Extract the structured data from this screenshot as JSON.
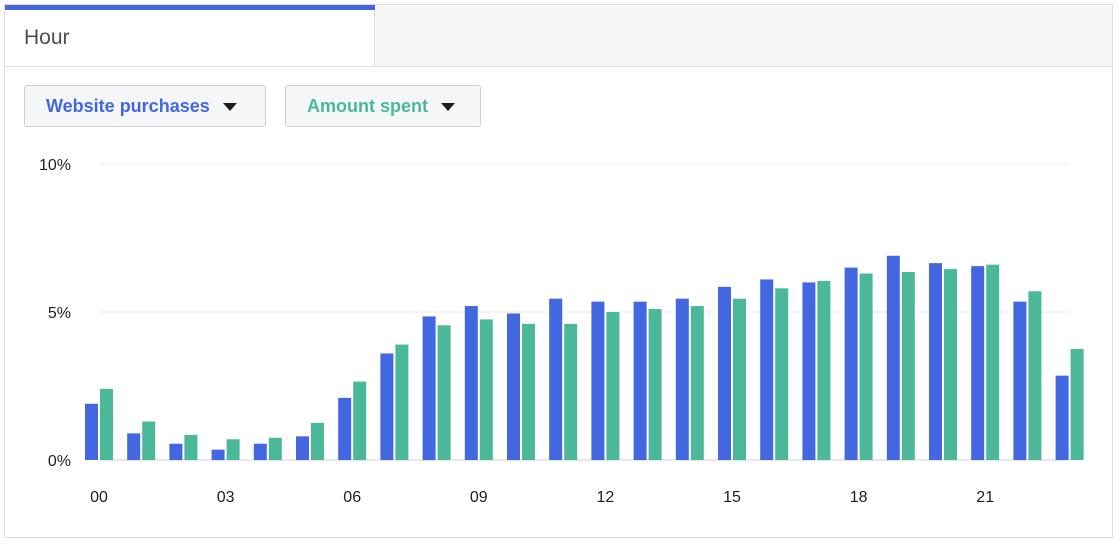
{
  "tab": {
    "label": "Hour"
  },
  "dropdowns": [
    {
      "label": "Website purchases",
      "color": "#4267e0"
    },
    {
      "label": "Amount spent",
      "color": "#4bb89a"
    }
  ],
  "chart_data": {
    "type": "bar",
    "categories": [
      "00",
      "01",
      "02",
      "03",
      "04",
      "05",
      "06",
      "07",
      "08",
      "09",
      "10",
      "11",
      "12",
      "13",
      "14",
      "15",
      "16",
      "17",
      "18",
      "19",
      "20",
      "21",
      "22",
      "23"
    ],
    "x_tick_labels": [
      "00",
      "03",
      "06",
      "09",
      "12",
      "15",
      "18",
      "21"
    ],
    "y_tick_labels": [
      "0%",
      "5%",
      "10%"
    ],
    "ylim": [
      0,
      10
    ],
    "grid": true,
    "series": [
      {
        "name": "Website purchases",
        "color": "#4267e0",
        "values": [
          1.9,
          0.9,
          0.55,
          0.35,
          0.55,
          0.8,
          2.1,
          3.6,
          4.85,
          5.2,
          4.95,
          5.45,
          5.35,
          5.35,
          5.45,
          5.85,
          6.1,
          6.0,
          6.5,
          6.9,
          6.65,
          6.55,
          5.35,
          2.85
        ]
      },
      {
        "name": "Amount spent",
        "color": "#4bb89a",
        "values": [
          2.4,
          1.3,
          0.85,
          0.7,
          0.75,
          1.25,
          2.65,
          3.9,
          4.55,
          4.75,
          4.6,
          4.6,
          5.0,
          5.1,
          5.2,
          5.45,
          5.8,
          6.05,
          6.3,
          6.35,
          6.45,
          6.6,
          5.7,
          3.75
        ]
      }
    ]
  }
}
